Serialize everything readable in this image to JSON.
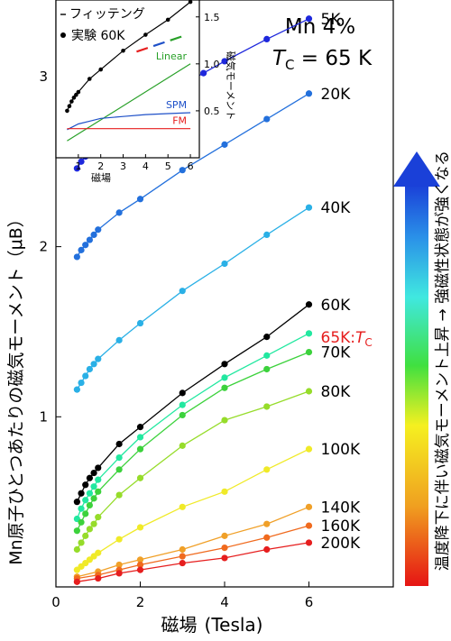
{
  "chart_data": [
    {
      "type": "line",
      "title": "",
      "annotation_line1": "Mn 4%",
      "annotation_tc_symbol": "T",
      "annotation_tc_sub": "C",
      "annotation_tc_value": " = 65 K",
      "xlabel_main": "磁場",
      "xlabel_unit": "(Tesla)",
      "ylabel": "Mn原子ひとつあたりの磁気モーメント（μB）",
      "xlim": [
        0,
        8
      ],
      "ylim": [
        0,
        3.45
      ],
      "xticks": [
        0,
        2,
        4,
        6
      ],
      "yticks": [
        1,
        2,
        3
      ],
      "grid": false,
      "colorbar_label": "温度降下に伴い磁気モーメント上昇 → 強磁性状態が強くなる",
      "series": [
        {
          "name": "5K",
          "color": "#1e28dc",
          "x": [
            0.5,
            0.6,
            0.7,
            0.8,
            0.9,
            1.0,
            1.25,
            1.5,
            1.75,
            2.0,
            2.5,
            3.0,
            3.5,
            4.0,
            5.0,
            6.0
          ],
          "y": [
            2.46,
            2.5,
            2.53,
            2.56,
            2.58,
            2.59,
            2.64,
            2.69,
            2.74,
            2.78,
            2.87,
            2.95,
            3.02,
            3.09,
            3.22,
            3.34
          ]
        },
        {
          "name": "20K",
          "color": "#2370dc",
          "x": [
            0.5,
            0.6,
            0.7,
            0.8,
            0.9,
            1.0,
            1.5,
            2.0,
            3.0,
            4.0,
            5.0,
            6.0
          ],
          "y": [
            1.94,
            1.98,
            2.01,
            2.04,
            2.07,
            2.1,
            2.2,
            2.28,
            2.45,
            2.6,
            2.75,
            2.9
          ]
        },
        {
          "name": "40K",
          "color": "#2ab0e6",
          "x": [
            0.5,
            0.6,
            0.7,
            0.8,
            0.9,
            1.0,
            1.5,
            2.0,
            3.0,
            4.0,
            5.0,
            6.0
          ],
          "y": [
            1.16,
            1.2,
            1.24,
            1.28,
            1.31,
            1.34,
            1.45,
            1.55,
            1.74,
            1.9,
            2.07,
            2.23
          ]
        },
        {
          "name": "60K",
          "color": "#000000",
          "x": [
            0.5,
            0.6,
            0.7,
            0.8,
            0.9,
            1.0,
            1.5,
            2.0,
            3.0,
            4.0,
            5.0,
            6.0
          ],
          "y": [
            0.5,
            0.55,
            0.6,
            0.64,
            0.67,
            0.7,
            0.84,
            0.94,
            1.14,
            1.31,
            1.47,
            1.66
          ]
        },
        {
          "name": "65K:",
          "color": "#22e8a0",
          "x": [
            0.5,
            0.6,
            0.7,
            0.8,
            0.9,
            1.0,
            1.5,
            2.0,
            3.0,
            4.0,
            5.0,
            6.0
          ],
          "y": [
            0.4,
            0.46,
            0.51,
            0.55,
            0.59,
            0.63,
            0.76,
            0.88,
            1.07,
            1.23,
            1.36,
            1.49
          ]
        },
        {
          "name": "70K",
          "color": "#3cd23c",
          "x": [
            0.5,
            0.6,
            0.7,
            0.8,
            0.9,
            1.0,
            1.5,
            2.0,
            3.0,
            4.0,
            5.0,
            6.0
          ],
          "y": [
            0.33,
            0.38,
            0.43,
            0.48,
            0.52,
            0.56,
            0.69,
            0.81,
            1.01,
            1.17,
            1.28,
            1.38
          ]
        },
        {
          "name": "80K",
          "color": "#96dc2a",
          "x": [
            0.5,
            0.6,
            0.7,
            0.8,
            0.9,
            1.0,
            1.5,
            2.0,
            3.0,
            4.0,
            5.0,
            6.0
          ],
          "y": [
            0.22,
            0.26,
            0.3,
            0.34,
            0.37,
            0.41,
            0.54,
            0.64,
            0.83,
            0.98,
            1.06,
            1.15
          ]
        },
        {
          "name": "100K",
          "color": "#f0ea28",
          "x": [
            0.5,
            0.6,
            0.7,
            0.8,
            0.9,
            1.0,
            1.5,
            2.0,
            3.0,
            4.0,
            5.0,
            6.0
          ],
          "y": [
            0.1,
            0.12,
            0.14,
            0.16,
            0.18,
            0.2,
            0.28,
            0.35,
            0.47,
            0.56,
            0.69,
            0.81
          ]
        },
        {
          "name": "140K",
          "color": "#f0a028",
          "x": [
            0.5,
            1.0,
            1.5,
            2.0,
            3.0,
            4.0,
            5.0,
            6.0
          ],
          "y": [
            0.06,
            0.09,
            0.13,
            0.16,
            0.22,
            0.3,
            0.37,
            0.47
          ]
        },
        {
          "name": "160K",
          "color": "#f06a1e",
          "x": [
            0.5,
            1.0,
            1.5,
            2.0,
            3.0,
            4.0,
            5.0,
            6.0
          ],
          "y": [
            0.05,
            0.07,
            0.1,
            0.13,
            0.18,
            0.23,
            0.29,
            0.36
          ]
        },
        {
          "name": "200K",
          "color": "#e61e1e",
          "x": [
            0.5,
            1.0,
            1.5,
            2.0,
            3.0,
            4.0,
            5.0,
            6.0
          ],
          "y": [
            0.03,
            0.05,
            0.08,
            0.1,
            0.14,
            0.17,
            0.22,
            0.26
          ]
        }
      ],
      "tc_label": "T",
      "tc_label_sub": "C",
      "tc_label_color": "#e61e1e"
    },
    {
      "type": "line",
      "title": "",
      "xlabel": "磁場",
      "ylabel": "磁気モーメント",
      "xlim": [
        0,
        6.4
      ],
      "ylim": [
        0,
        1.68
      ],
      "xticks": [
        1,
        2,
        3,
        4,
        5,
        6
      ],
      "yticks": [
        0.5,
        1.0,
        1.5
      ],
      "grid": false,
      "legend": [
        {
          "label": "フィッテング",
          "marker": "line"
        },
        {
          "label": "実験 60K",
          "marker": "dot"
        }
      ],
      "series": [
        {
          "name": "実験 60K",
          "color": "#000000",
          "x": [
            0.5,
            0.6,
            0.7,
            0.8,
            0.9,
            1.0,
            1.5,
            2.0,
            3.0,
            4.0,
            5.0,
            6.0
          ],
          "y": [
            0.5,
            0.55,
            0.6,
            0.64,
            0.67,
            0.7,
            0.84,
            0.94,
            1.14,
            1.31,
            1.47,
            1.66
          ]
        },
        {
          "name": "Linear",
          "color": "#28a028",
          "x": [
            0.5,
            6.0
          ],
          "y": [
            0.18,
            1.0
          ]
        },
        {
          "name": "SPM",
          "color": "#1e50c8",
          "x": [
            0.5,
            1.0,
            1.5,
            2.0,
            3.0,
            4.0,
            5.0,
            6.0
          ],
          "y": [
            0.3,
            0.36,
            0.39,
            0.42,
            0.44,
            0.46,
            0.47,
            0.48
          ]
        },
        {
          "name": "FM",
          "color": "#e61e1e",
          "x": [
            0.5,
            6.0
          ],
          "y": [
            0.31,
            0.31
          ]
        }
      ],
      "colored_segment_colors": [
        "#e61e1e",
        "#1e50c8",
        "#28a028"
      ]
    }
  ]
}
